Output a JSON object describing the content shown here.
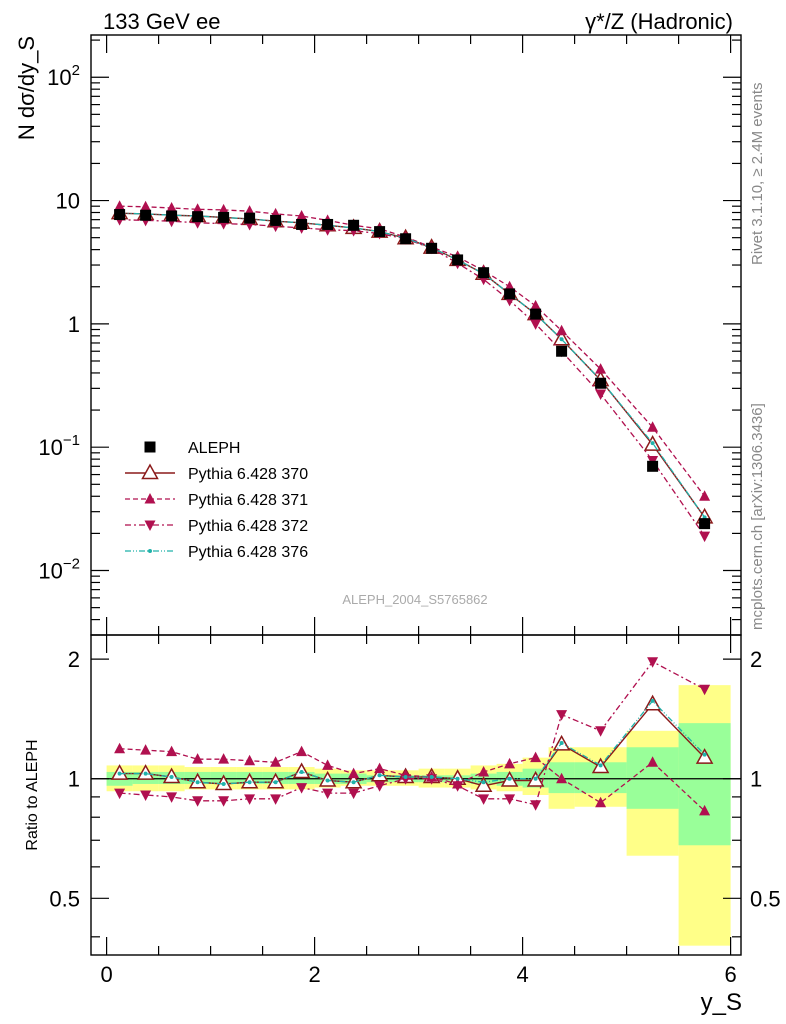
{
  "header": {
    "left": "133 GeV ee",
    "right": "γ*/Z (Hadronic)"
  },
  "side_labels": {
    "rivet": "Rivet 3.1.10, ≥ 2.4M events",
    "source": "mcplots.cern.ch [arXiv:1306.3436]"
  },
  "analysis_id": "ALEPH_2004_S5765862",
  "colors": {
    "data": "#000000",
    "mc370": "#8b1a1a",
    "mc371": "#b0104f",
    "mc372": "#b0104f",
    "mc376": "#20b2aa",
    "band_stat": "#99ff99",
    "band_total": "#ffff88"
  },
  "chart_data": [
    {
      "type": "line",
      "panel": "main",
      "ylabel": "N dσ/dy_S",
      "yscale": "log",
      "ylim": [
        0.003,
        220
      ],
      "y_ticks": [
        "10^-2",
        "10^-1",
        "1",
        "10",
        "10^2"
      ],
      "x": [
        0.125,
        0.375,
        0.625,
        0.875,
        1.125,
        1.375,
        1.625,
        1.875,
        2.125,
        2.375,
        2.625,
        2.875,
        3.125,
        3.375,
        3.625,
        3.875,
        4.125,
        4.375,
        4.75,
        5.25,
        5.75
      ],
      "series": [
        {
          "name": "ALEPH",
          "style": "data",
          "values": [
            7.7,
            7.6,
            7.5,
            7.4,
            7.3,
            7.2,
            6.9,
            6.4,
            6.4,
            6.3,
            5.6,
            4.9,
            4.1,
            3.3,
            2.6,
            1.75,
            1.2,
            0.6,
            0.33,
            0.07,
            0.024
          ]
        },
        {
          "name": "Pythia 6.428 370",
          "style": "mc370",
          "values": [
            7.9,
            7.8,
            7.6,
            7.5,
            7.3,
            7.1,
            6.8,
            6.6,
            6.3,
            6.0,
            5.6,
            4.95,
            4.15,
            3.3,
            2.55,
            1.75,
            1.2,
            0.75,
            0.35,
            0.105,
            0.027
          ]
        },
        {
          "name": "Pythia 6.428 371",
          "style": "mc371",
          "values": [
            9.0,
            8.9,
            8.7,
            8.5,
            8.4,
            8.2,
            7.8,
            7.5,
            6.9,
            6.3,
            5.9,
            5.05,
            4.2,
            3.5,
            2.7,
            2.0,
            1.4,
            0.88,
            0.43,
            0.145,
            0.04
          ]
        },
        {
          "name": "Pythia 6.428 372",
          "style": "mc372",
          "values": [
            7.0,
            6.9,
            6.8,
            6.6,
            6.5,
            6.4,
            6.2,
            6.0,
            5.8,
            5.7,
            5.4,
            4.9,
            4.1,
            3.1,
            2.3,
            1.55,
            1.0,
            0.6,
            0.27,
            0.078,
            0.019
          ]
        },
        {
          "name": "Pythia 6.428 376",
          "style": "mc376",
          "values": [
            7.9,
            7.8,
            7.6,
            7.5,
            7.3,
            7.1,
            6.8,
            6.6,
            6.3,
            6.0,
            5.6,
            4.95,
            4.15,
            3.3,
            2.55,
            1.75,
            1.2,
            0.75,
            0.35,
            0.108,
            0.027
          ]
        }
      ],
      "legend_position": "bottom-left"
    },
    {
      "type": "line",
      "panel": "ratio",
      "ylabel": "Ratio to ALEPH",
      "xlabel": "y_S",
      "ylim": [
        0.36,
        2.3
      ],
      "xlim": [
        -0.15,
        6.1
      ],
      "x_ticks": [
        "0",
        "2",
        "4",
        "6"
      ],
      "y_ticks": [
        "0.5",
        "1",
        "2"
      ],
      "x": [
        0.125,
        0.375,
        0.625,
        0.875,
        1.125,
        1.375,
        1.625,
        1.875,
        2.125,
        2.375,
        2.625,
        2.875,
        3.125,
        3.375,
        3.625,
        3.875,
        4.125,
        4.375,
        4.75,
        5.25,
        5.75
      ],
      "bin_edges": [
        0.0,
        0.25,
        0.5,
        0.75,
        1.0,
        1.25,
        1.5,
        1.75,
        2.0,
        2.25,
        2.5,
        2.75,
        3.0,
        3.25,
        3.5,
        3.75,
        4.0,
        4.25,
        4.5,
        5.0,
        5.5,
        6.0
      ],
      "band_stat": [
        [
          0.96,
          1.04
        ],
        [
          0.97,
          1.04
        ],
        [
          0.97,
          1.04
        ],
        [
          0.97,
          1.04
        ],
        [
          0.97,
          1.04
        ],
        [
          0.97,
          1.04
        ],
        [
          0.97,
          1.04
        ],
        [
          0.97,
          1.04
        ],
        [
          0.97,
          1.03
        ],
        [
          0.97,
          1.03
        ],
        [
          0.98,
          1.02
        ],
        [
          0.98,
          1.02
        ],
        [
          0.98,
          1.02
        ],
        [
          0.98,
          1.02
        ],
        [
          0.97,
          1.03
        ],
        [
          0.96,
          1.04
        ],
        [
          0.95,
          1.06
        ],
        [
          0.92,
          1.1
        ],
        [
          0.92,
          1.1
        ],
        [
          0.84,
          1.2
        ],
        [
          0.68,
          1.38
        ]
      ],
      "band_total": [
        [
          0.93,
          1.08
        ],
        [
          0.93,
          1.08
        ],
        [
          0.93,
          1.08
        ],
        [
          0.94,
          1.07
        ],
        [
          0.94,
          1.07
        ],
        [
          0.94,
          1.07
        ],
        [
          0.94,
          1.07
        ],
        [
          0.94,
          1.07
        ],
        [
          0.95,
          1.06
        ],
        [
          0.96,
          1.05
        ],
        [
          0.96,
          1.05
        ],
        [
          0.96,
          1.05
        ],
        [
          0.95,
          1.06
        ],
        [
          0.95,
          1.06
        ],
        [
          0.94,
          1.08
        ],
        [
          0.93,
          1.09
        ],
        [
          0.91,
          1.13
        ],
        [
          0.84,
          1.2
        ],
        [
          0.85,
          1.2
        ],
        [
          0.64,
          1.32
        ],
        [
          0.38,
          1.72
        ]
      ],
      "series": [
        {
          "name": "Pythia 6.428 370",
          "style": "mc370",
          "values": [
            1.03,
            1.03,
            1.01,
            0.98,
            0.97,
            0.98,
            0.98,
            1.04,
            0.99,
            0.98,
            1.02,
            1.01,
            1.01,
            1.0,
            0.96,
            0.99,
            0.99,
            1.22,
            1.07,
            1.54,
            1.13
          ]
        },
        {
          "name": "Pythia 6.428 371",
          "style": "mc371",
          "values": [
            1.19,
            1.18,
            1.17,
            1.12,
            1.12,
            1.11,
            1.1,
            1.17,
            1.08,
            1.03,
            1.06,
            1.02,
            1.01,
            0.97,
            1.04,
            1.09,
            1.13,
            1.0,
            0.87,
            1.1,
            0.83
          ]
        },
        {
          "name": "Pythia 6.428 372",
          "style": "mc372",
          "values": [
            0.92,
            0.91,
            0.9,
            0.88,
            0.88,
            0.89,
            0.89,
            0.95,
            0.92,
            0.92,
            0.96,
            1.0,
            1.0,
            0.96,
            0.89,
            0.89,
            0.86,
            1.45,
            1.32,
            1.97,
            1.68
          ]
        },
        {
          "name": "Pythia 6.428 376",
          "style": "mc376",
          "values": [
            1.03,
            1.03,
            1.01,
            0.98,
            0.97,
            0.98,
            0.98,
            1.04,
            0.99,
            0.98,
            1.02,
            1.01,
            1.01,
            1.0,
            0.98,
            1.0,
            1.0,
            1.23,
            1.08,
            1.57,
            1.15
          ]
        }
      ]
    }
  ]
}
